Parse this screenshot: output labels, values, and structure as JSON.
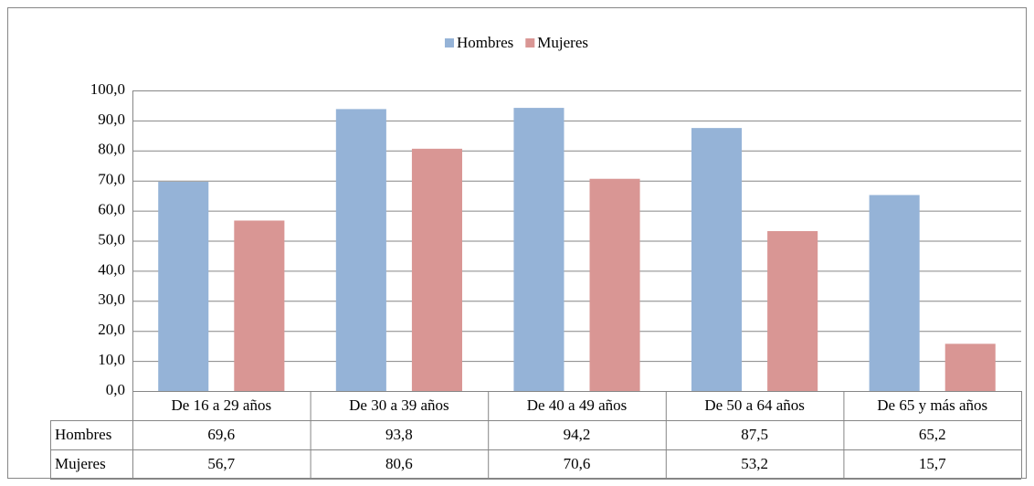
{
  "chart_data": {
    "type": "bar",
    "categories": [
      "De 16 a 29 años",
      "De 30 a 39 años",
      "De 40 a 49 años",
      "De 50 a 64 años",
      "De 65 y más años"
    ],
    "series": [
      {
        "name": "Hombres",
        "color": "#95b3d7",
        "values": [
          69.6,
          93.8,
          94.2,
          87.5,
          65.2
        ],
        "value_labels": [
          "69,6",
          "93,8",
          "94,2",
          "87,5",
          "65,2"
        ]
      },
      {
        "name": "Mujeres",
        "color": "#d99694",
        "values": [
          56.7,
          80.6,
          70.6,
          53.2,
          15.7
        ],
        "value_labels": [
          "56,7",
          "80,6",
          "70,6",
          "53,2",
          "15,7"
        ]
      }
    ],
    "ylim": [
      0,
      100
    ],
    "yticks": [
      {
        "value": 0,
        "label": "0,0"
      },
      {
        "value": 10,
        "label": "10,0"
      },
      {
        "value": 20,
        "label": "20,0"
      },
      {
        "value": 30,
        "label": "30,0"
      },
      {
        "value": 40,
        "label": "40,0"
      },
      {
        "value": 50,
        "label": "50,0"
      },
      {
        "value": 60,
        "label": "60,0"
      },
      {
        "value": 70,
        "label": "70,0"
      },
      {
        "value": 80,
        "label": "80,0"
      },
      {
        "value": 90,
        "label": "90,0"
      },
      {
        "value": 100,
        "label": "100,0"
      }
    ],
    "grid": true,
    "legend": "top"
  }
}
